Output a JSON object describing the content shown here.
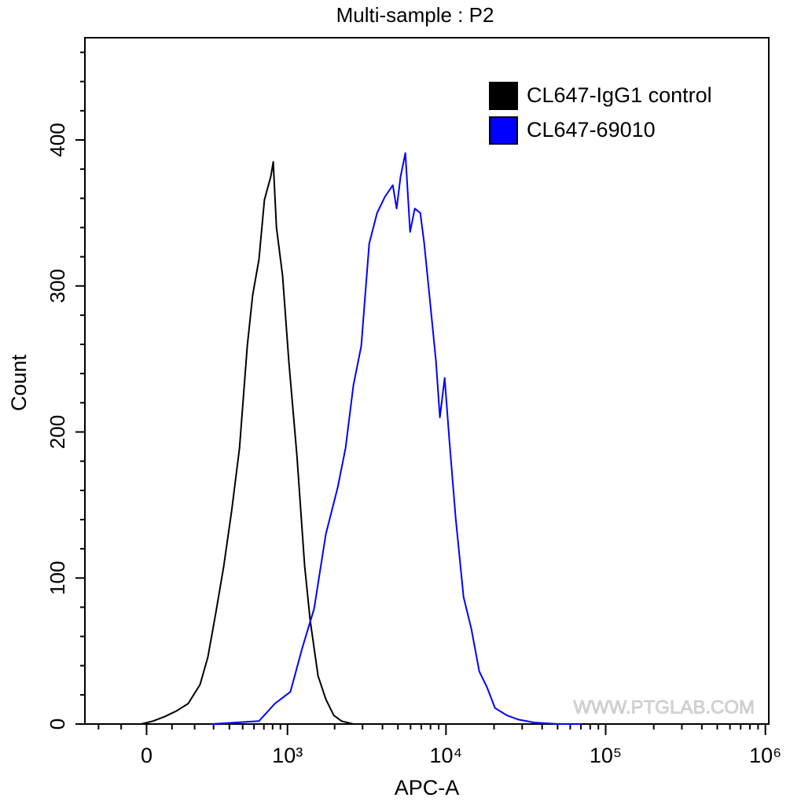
{
  "chart_data": {
    "type": "histogram-line",
    "title": "Multi-sample : P2",
    "x_label": "APC-A",
    "y_label": "Count",
    "watermark": "WWW.PTGLAB.COM",
    "xscale": "biexponential",
    "xlim": [
      -270,
      1050000
    ],
    "xticks": [
      0,
      {
        "value": 1000,
        "label": "10³"
      },
      {
        "value": 10000,
        "label": "10⁴"
      },
      {
        "value": 100000,
        "label": "10⁵"
      },
      {
        "value": 1000000,
        "label": "10⁶"
      }
    ],
    "xminorticks": [
      -200,
      -100,
      100,
      200,
      300,
      400,
      500,
      600,
      700,
      800,
      900,
      2000,
      3000,
      4000,
      5000,
      6000,
      7000,
      8000,
      9000,
      20000,
      30000,
      40000,
      50000,
      60000,
      70000,
      80000,
      90000,
      200000,
      300000,
      400000,
      500000,
      600000,
      700000,
      800000,
      900000
    ],
    "ylim": [
      0,
      470
    ],
    "yticks": [
      0,
      100,
      200,
      300,
      400
    ],
    "yminorticks": [
      20,
      40,
      60,
      80,
      120,
      140,
      160,
      180,
      220,
      240,
      260,
      280,
      320,
      340,
      360,
      380,
      420,
      440,
      460
    ],
    "legend": "top-right",
    "series": [
      {
        "name": "CL647-IgG1 control",
        "color": "#000000",
        "x": [
          -21,
          24,
          70,
          119,
          170,
          227,
          268,
          313,
          362,
          416,
          475,
          539,
          588,
          648,
          706,
          778,
          807,
          848,
          930,
          1021,
          1150,
          1290,
          1400,
          1570,
          1760,
          1975,
          2215,
          2627
        ],
        "values": [
          0,
          2,
          5,
          9,
          14,
          27,
          46,
          76,
          108,
          146,
          189,
          259,
          294,
          318,
          359,
          375,
          385,
          340,
          307,
          248,
          184,
          108,
          71,
          33,
          17,
          6,
          2,
          0
        ]
      },
      {
        "name": "CL647-69010",
        "color": "#0000ff",
        "x": [
          291,
          443,
          648,
          828,
          1045,
          1245,
          1482,
          1760,
          2092,
          2345,
          2627,
          2945,
          3300,
          3698,
          4141,
          4640,
          4910,
          5196,
          5564,
          5957,
          6378,
          6905,
          7305,
          8000,
          8659,
          9163,
          9810,
          10500,
          11500,
          12880,
          14425,
          16160,
          18100,
          20270,
          24030,
          28490,
          35750,
          50250,
          70650
        ],
        "values": [
          0,
          1,
          2,
          14,
          22,
          52,
          79,
          130,
          162,
          189,
          232,
          259,
          329,
          350,
          361,
          369,
          353,
          375,
          391,
          337,
          353,
          350,
          329,
          286,
          248,
          210,
          237,
          194,
          141,
          87,
          65,
          36,
          25,
          11,
          6,
          3,
          1,
          0,
          0
        ]
      }
    ]
  }
}
